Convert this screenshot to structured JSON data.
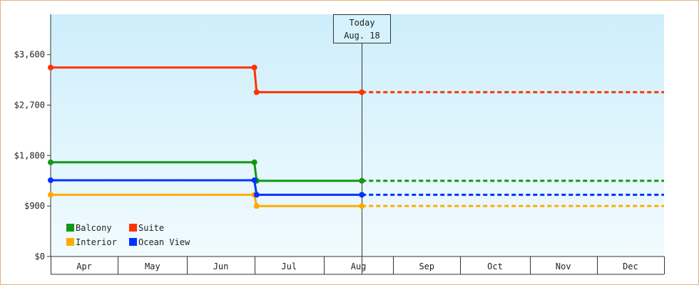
{
  "chart_data": {
    "type": "line",
    "step": true,
    "title": "",
    "xlabel": "",
    "ylabel": "",
    "ylim": [
      0,
      4320
    ],
    "y_ticks": [
      0,
      900,
      1800,
      2700,
      3600
    ],
    "y_tick_labels": [
      "$0",
      "$900",
      "$1,800",
      "$2,700",
      "$3,600"
    ],
    "x_start": "2024-04-01",
    "x_end": "2024-12-31",
    "x_month_labels": [
      "Apr",
      "May",
      "Jun",
      "Jul",
      "Aug",
      "Sep",
      "Oct",
      "Nov",
      "Dec"
    ],
    "today": {
      "date": "2024-08-18",
      "label_line1": "Today",
      "label_line2": "Aug. 18"
    },
    "grid": false,
    "legend": {
      "position": "bottom-left"
    },
    "series": [
      {
        "name": "Balcony",
        "color": "#119911",
        "points": [
          {
            "date": "2024-04-01",
            "value": 1680
          },
          {
            "date": "2024-07-01",
            "value": 1680
          },
          {
            "date": "2024-07-02",
            "value": 1350
          },
          {
            "date": "2024-08-18",
            "value": 1350
          }
        ],
        "projected_value": 1350
      },
      {
        "name": "Suite",
        "color": "#ff3300",
        "points": [
          {
            "date": "2024-04-01",
            "value": 3370
          },
          {
            "date": "2024-07-01",
            "value": 3370
          },
          {
            "date": "2024-07-02",
            "value": 2930
          },
          {
            "date": "2024-08-18",
            "value": 2930
          }
        ],
        "projected_value": 2930
      },
      {
        "name": "Interior",
        "color": "#ffaa00",
        "points": [
          {
            "date": "2024-04-01",
            "value": 1100
          },
          {
            "date": "2024-07-01",
            "value": 1100
          },
          {
            "date": "2024-07-02",
            "value": 900
          },
          {
            "date": "2024-08-18",
            "value": 900
          }
        ],
        "projected_value": 900
      },
      {
        "name": "Ocean View",
        "color": "#0033ff",
        "points": [
          {
            "date": "2024-04-01",
            "value": 1360
          },
          {
            "date": "2024-07-01",
            "value": 1360
          },
          {
            "date": "2024-07-02",
            "value": 1100
          },
          {
            "date": "2024-08-18",
            "value": 1100
          }
        ],
        "projected_value": 1100
      }
    ]
  }
}
